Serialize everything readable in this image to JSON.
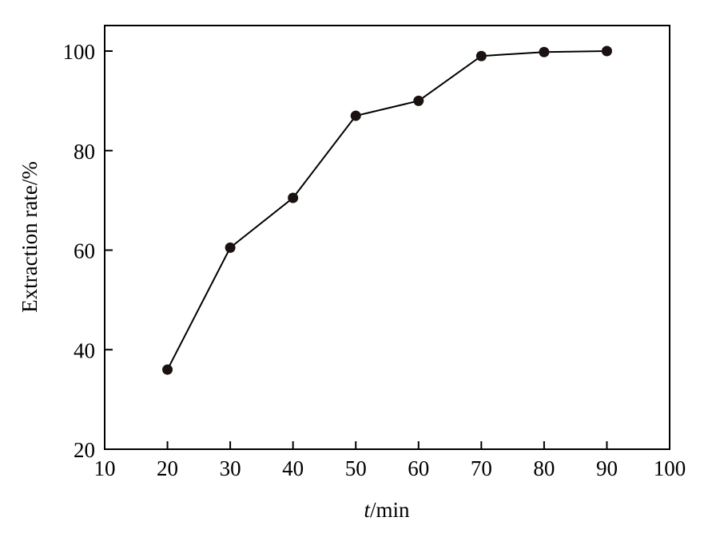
{
  "chart_data": {
    "type": "line",
    "title": "",
    "xlabel_var": "t",
    "xlabel_unit": "/min",
    "ylabel": "Extraction rate/%",
    "xlim": [
      10,
      100
    ],
    "ylim": [
      20,
      105
    ],
    "xticks": [
      10,
      20,
      30,
      40,
      50,
      60,
      70,
      80,
      90,
      100
    ],
    "yticks": [
      20,
      40,
      60,
      80,
      100
    ],
    "grid": false,
    "series": [
      {
        "x": [
          20,
          30,
          40,
          50,
          60,
          70,
          80,
          90
        ],
        "y": [
          36,
          60.5,
          70.5,
          87,
          90,
          99,
          99.8,
          100
        ]
      }
    ],
    "colors": {
      "line": "#000000",
      "marker": "#1a1111"
    }
  }
}
